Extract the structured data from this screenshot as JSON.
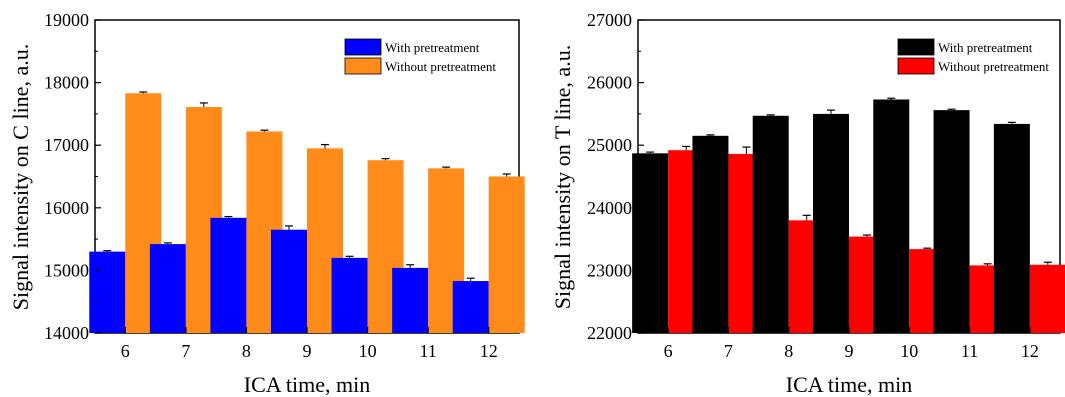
{
  "chart_data": [
    {
      "type": "bar",
      "xlabel": "ICA time, min",
      "ylabel": "Signal intensity on C line, a.u.",
      "categories": [
        "6",
        "7",
        "8",
        "9",
        "10",
        "11",
        "12"
      ],
      "ylim": [
        14000,
        19000
      ],
      "yticks": [
        "14000",
        "15000",
        "16000",
        "17000",
        "18000",
        "19000"
      ],
      "legend_position": "top-right",
      "grid": false,
      "series": [
        {
          "name": "With pretreatment",
          "color": "#0000ff",
          "values": [
            15300,
            15420,
            15840,
            15650,
            15200,
            15040,
            14830
          ],
          "errors": [
            15,
            20,
            20,
            60,
            25,
            50,
            45
          ]
        },
        {
          "name": "Without pretreatment",
          "color": "#ff8c1a",
          "values": [
            17830,
            17610,
            17220,
            16950,
            16760,
            16630,
            16500
          ],
          "errors": [
            20,
            65,
            20,
            60,
            25,
            20,
            40
          ]
        }
      ]
    },
    {
      "type": "bar",
      "xlabel": "ICA time, min",
      "ylabel": "Signal intensity on T line, a.u.",
      "categories": [
        "6",
        "7",
        "8",
        "9",
        "10",
        "11",
        "12"
      ],
      "ylim": [
        22000,
        27000
      ],
      "yticks": [
        "22000",
        "23000",
        "24000",
        "25000",
        "26000",
        "27000"
      ],
      "legend_position": "top-right",
      "grid": false,
      "series": [
        {
          "name": "With pretreatment",
          "color": "#000000",
          "values": [
            24870,
            25150,
            25470,
            25500,
            25730,
            25560,
            25340
          ],
          "errors": [
            20,
            15,
            15,
            60,
            20,
            15,
            25
          ]
        },
        {
          "name": "Without pretreatment",
          "color": "#ff0000",
          "values": [
            24920,
            24860,
            23800,
            23540,
            23340,
            23080,
            23090
          ],
          "errors": [
            60,
            110,
            80,
            25,
            15,
            25,
            40
          ]
        }
      ]
    }
  ]
}
